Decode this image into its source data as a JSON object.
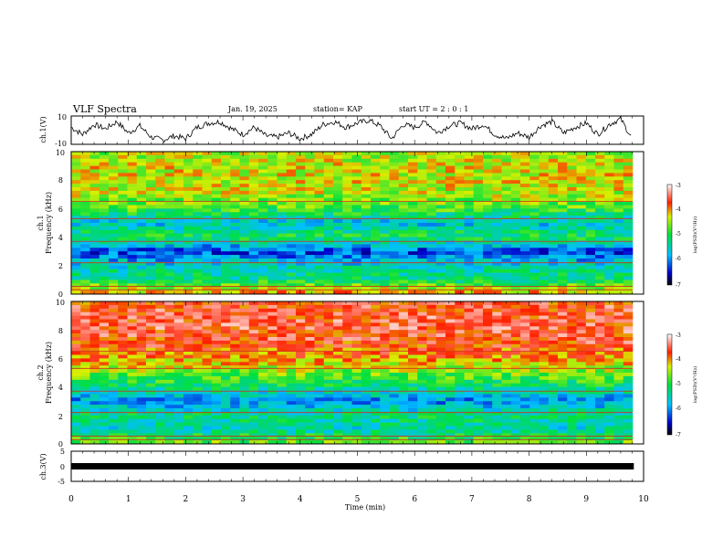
{
  "header": {
    "title": "VLF Spectra",
    "date": "Jan. 19, 2025",
    "station": "station= KAP",
    "start": "start  UT =   2 : 0  : 1"
  },
  "chart_data": [
    {
      "type": "line",
      "title": "",
      "ylabel": "ch.1(V)",
      "ylim": [
        -10,
        10
      ],
      "yticks": [
        "10",
        "-10"
      ],
      "xlim": [
        0,
        10
      ],
      "x": [
        0,
        0.2,
        0.4,
        0.6,
        0.8,
        1.0,
        1.2,
        1.4,
        1.6,
        1.8,
        2.0,
        2.2,
        2.4,
        2.6,
        2.8,
        3.0,
        3.2,
        3.4,
        3.6,
        3.8,
        4.0,
        4.2,
        4.4,
        4.6,
        4.8,
        5.0,
        5.2,
        5.4,
        5.6,
        5.8,
        6.0,
        6.2,
        6.4,
        6.6,
        6.8,
        7.0,
        7.2,
        7.4,
        7.6,
        7.8,
        8.0,
        8.2,
        8.4,
        8.6,
        8.8,
        9.0,
        9.2,
        9.4,
        9.6,
        9.8
      ],
      "y": [
        2,
        -3,
        4,
        1,
        6,
        -2,
        3,
        -5,
        -7,
        -4,
        -6,
        2,
        5,
        6,
        1,
        -3,
        2,
        -4,
        -5,
        -2,
        -6,
        -3,
        4,
        6,
        2,
        5,
        7,
        3,
        -6,
        4,
        2,
        6,
        -2,
        3,
        5,
        1,
        4,
        -3,
        -6,
        -2,
        -5,
        3,
        6,
        -2,
        2,
        5,
        -3,
        4,
        8,
        -6
      ]
    },
    {
      "type": "heatmap",
      "title": "",
      "ylabel": "ch.1\nFrequency (kHz)",
      "ylim": [
        0,
        10
      ],
      "yticks": [
        "0",
        "2",
        "4",
        "6",
        "8",
        "10"
      ],
      "xlim": [
        0,
        10
      ],
      "colorbar": {
        "label": "log(PSD)(V²/Hz)",
        "ticks": [
          "-3",
          "-4",
          "-5",
          "-6",
          "-7"
        ],
        "range": [
          -7,
          -3
        ]
      },
      "freq_khz": [
        0,
        1,
        2,
        3,
        4,
        5,
        6,
        7,
        8,
        9,
        10
      ],
      "log_psd_profile": [
        -4.0,
        -5.2,
        -5.5,
        -6.3,
        -5.0,
        -5.7,
        -4.8,
        -4.4,
        -4.3,
        -4.3,
        -4.5
      ]
    },
    {
      "type": "heatmap",
      "title": "",
      "ylabel": "ch.2\nFrequency (kHz)",
      "ylim": [
        0,
        10
      ],
      "yticks": [
        "0",
        "2",
        "4",
        "6",
        "8",
        "10"
      ],
      "xlim": [
        0,
        10
      ],
      "colorbar": {
        "label": "log(PSD)(V²/Hz)",
        "ticks": [
          "-3",
          "-4",
          "-5",
          "-6",
          "-7"
        ],
        "range": [
          -7,
          -3
        ]
      },
      "freq_khz": [
        0,
        1,
        2,
        3,
        4,
        5,
        6,
        7,
        8,
        9,
        10
      ],
      "log_psd_profile": [
        -4.6,
        -5.5,
        -5.2,
        -6.0,
        -5.2,
        -4.6,
        -4.0,
        -3.7,
        -3.6,
        -3.6,
        -3.7
      ]
    },
    {
      "type": "line",
      "title": "",
      "ylabel": "ch.3(V)",
      "ylim": [
        -5,
        5
      ],
      "yticks": [
        "5",
        "0",
        "-5"
      ],
      "xlim": [
        0,
        10
      ],
      "x": [
        0,
        9.83
      ],
      "y": [
        0,
        0
      ],
      "xlabel": "Time (min)",
      "xticks": [
        "0",
        "1",
        "2",
        "3",
        "4",
        "5",
        "6",
        "7",
        "8",
        "9",
        "10"
      ]
    }
  ]
}
